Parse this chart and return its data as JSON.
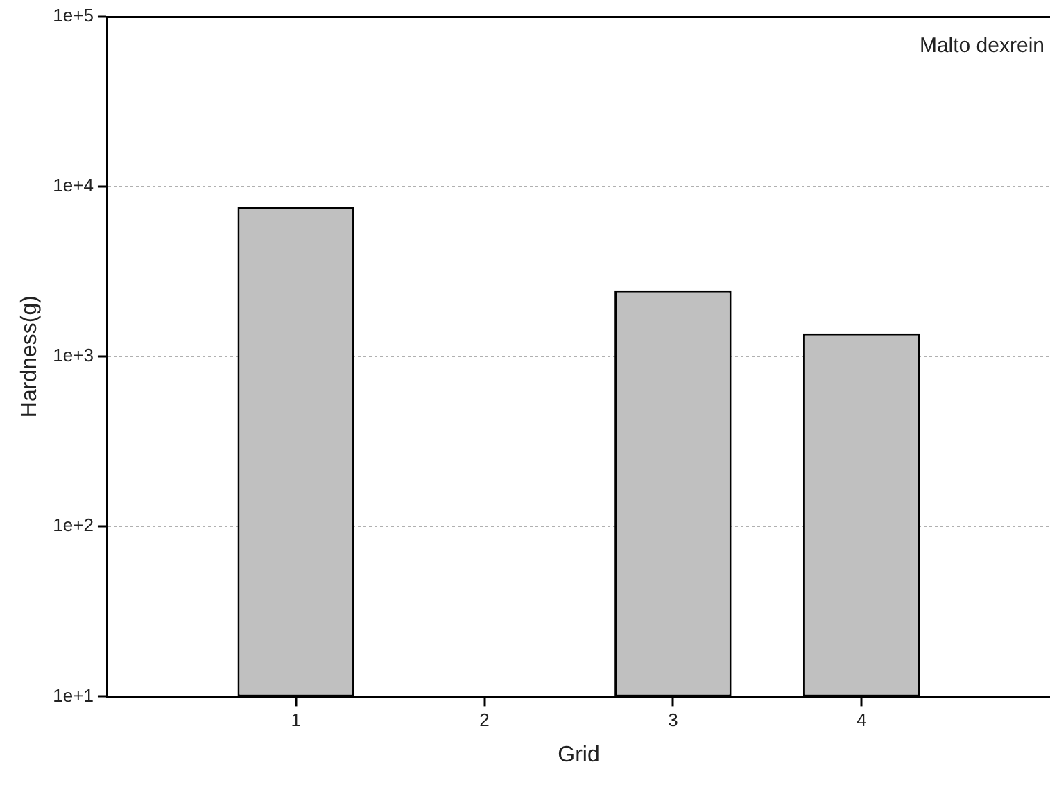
{
  "chart_data": {
    "type": "bar",
    "xlabel": "Grid",
    "ylabel": "Hardness(g)",
    "x": [
      1,
      2,
      3,
      4
    ],
    "values": [
      7600,
      null,
      2450,
      1370
    ],
    "color": "#c0c0c0",
    "xlim": [
      0,
      5
    ],
    "xticks": [
      1,
      2,
      3,
      4
    ],
    "ylim": [
      10,
      100000
    ],
    "yticks": [
      {
        "value": 10,
        "label": "1e+1"
      },
      {
        "value": 100,
        "label": "1e+2"
      },
      {
        "value": 1000,
        "label": "1e+3"
      },
      {
        "value": 10000,
        "label": "1e+4"
      },
      {
        "value": 100000,
        "label": "1e+5"
      }
    ],
    "log": "y",
    "grid": "y",
    "legend": false,
    "annotations": [
      "Malto dexrein"
    ]
  }
}
